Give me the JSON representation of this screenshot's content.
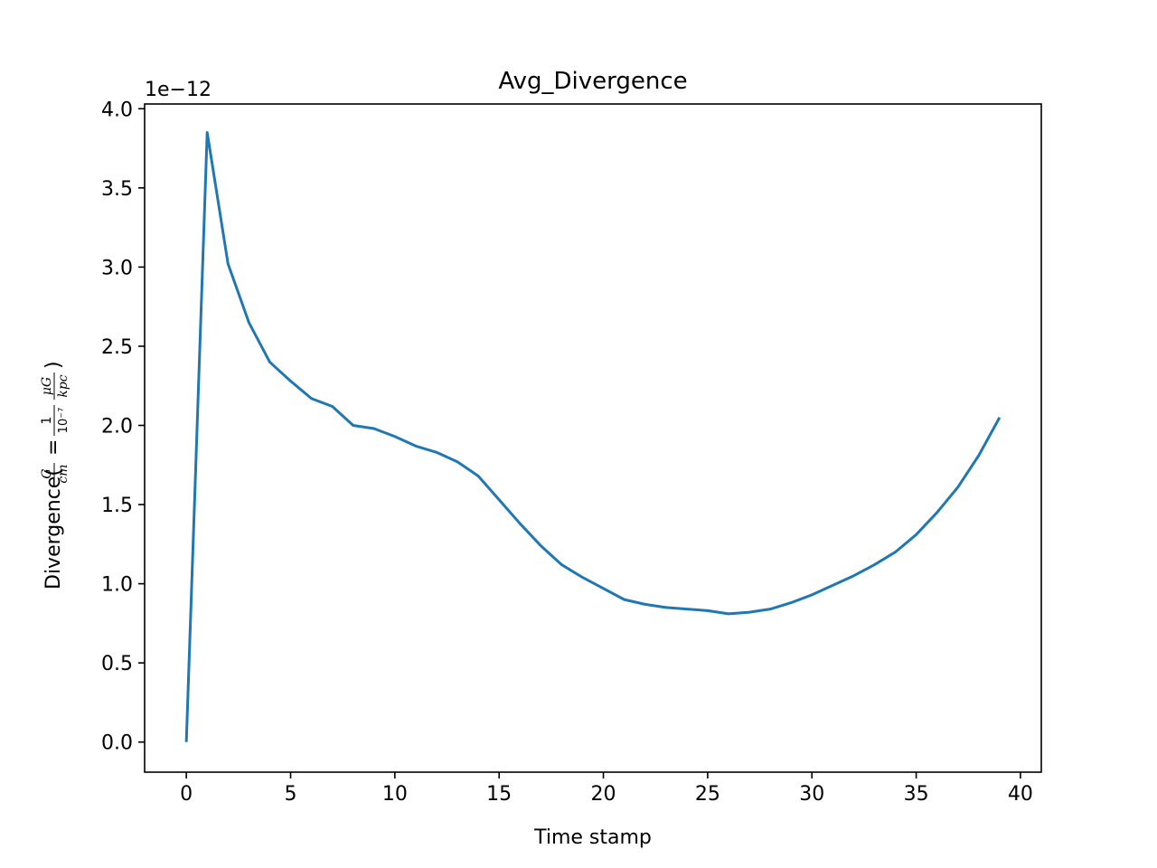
{
  "chart_data": {
    "type": "line",
    "title": "Avg_Divergence",
    "xlabel": "Time stamp",
    "ylabel": "Divergence(G/cm = 1/10⁻⁷ · μG/kpc)",
    "ylabel_parts": {
      "prefix": "Divergence(",
      "num1": "G",
      "den1": "cm",
      "equals": "=",
      "num2": "1",
      "den2": "10⁻⁷",
      "num3": "μG",
      "den3": "kpc",
      "suffix": ")"
    },
    "y_offset_text": "1e−12",
    "y_scale": 1e-12,
    "xlim": [
      -2,
      41
    ],
    "ylim": [
      -0.19,
      4.03
    ],
    "xticks": [
      0,
      5,
      10,
      15,
      20,
      25,
      30,
      35,
      40
    ],
    "xtick_labels": [
      "0",
      "5",
      "10",
      "15",
      "20",
      "25",
      "30",
      "35",
      "40"
    ],
    "yticks": [
      0.0,
      0.5,
      1.0,
      1.5,
      2.0,
      2.5,
      3.0,
      3.5,
      4.0
    ],
    "ytick_labels": [
      "0.0",
      "0.5",
      "1.0",
      "1.5",
      "2.0",
      "2.5",
      "3.0",
      "3.5",
      "4.0"
    ],
    "grid": false,
    "series": [
      {
        "color": "#1f77b4",
        "x": [
          0,
          1,
          2,
          3,
          4,
          5,
          6,
          7,
          8,
          9,
          10,
          11,
          12,
          13,
          14,
          15,
          16,
          17,
          18,
          19,
          20,
          21,
          22,
          23,
          24,
          25,
          26,
          27,
          28,
          29,
          30,
          31,
          32,
          33,
          34,
          35,
          36,
          37,
          38,
          39
        ],
        "y": [
          0.0,
          3.85,
          3.02,
          2.65,
          2.4,
          2.28,
          2.17,
          2.12,
          2.0,
          1.98,
          1.93,
          1.87,
          1.83,
          1.77,
          1.68,
          1.53,
          1.38,
          1.24,
          1.12,
          1.04,
          0.97,
          0.9,
          0.87,
          0.85,
          0.84,
          0.83,
          0.81,
          0.82,
          0.84,
          0.88,
          0.93,
          0.99,
          1.05,
          1.12,
          1.2,
          1.31,
          1.45,
          1.61,
          1.81,
          2.05
        ]
      }
    ]
  }
}
